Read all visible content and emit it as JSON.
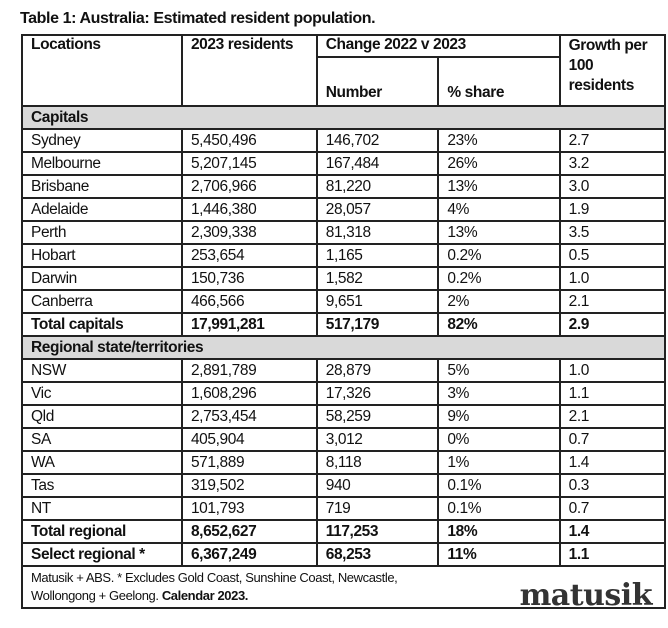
{
  "title": "Table 1: Australia: Estimated resident population.",
  "headers": {
    "locations": "Locations",
    "residents": "2023 residents",
    "change": "Change 2022 v 2023",
    "number": "Number",
    "share": "% share",
    "growth": "Growth per 100 residents"
  },
  "sections": [
    {
      "label": "Capitals",
      "rows": [
        [
          "Sydney",
          "5,450,496",
          "146,702",
          "23%",
          "2.7"
        ],
        [
          "Melbourne",
          "5,207,145",
          "167,484",
          "26%",
          "3.2"
        ],
        [
          "Brisbane",
          "2,706,966",
          "81,220",
          "13%",
          "3.0"
        ],
        [
          "Adelaide",
          "1,446,380",
          "28,057",
          "4%",
          "1.9"
        ],
        [
          "Perth",
          "2,309,338",
          "81,318",
          "13%",
          "3.5"
        ],
        [
          "Hobart",
          "253,654",
          "1,165",
          "0.2%",
          "0.5"
        ],
        [
          "Darwin",
          "150,736",
          "1,582",
          "0.2%",
          "1.0"
        ],
        [
          "Canberra",
          "466,566",
          "9,651",
          "2%",
          "2.1"
        ]
      ],
      "totals": [
        [
          "Total capitals",
          "17,991,281",
          "517,179",
          "82%",
          "2.9"
        ]
      ]
    },
    {
      "label": "Regional state/territories",
      "rows": [
        [
          "NSW",
          "2,891,789",
          "28,879",
          "5%",
          "1.0"
        ],
        [
          "Vic",
          "1,608,296",
          "17,326",
          "3%",
          "1.1"
        ],
        [
          "Qld",
          "2,753,454",
          "58,259",
          "9%",
          "2.1"
        ],
        [
          "SA",
          "405,904",
          "3,012",
          "0%",
          "0.7"
        ],
        [
          "WA",
          "571,889",
          "8,118",
          "1%",
          "1.4"
        ],
        [
          "Tas",
          "319,502",
          "940",
          "0.1%",
          "0.3"
        ],
        [
          "NT",
          "101,793",
          "719",
          "0.1%",
          "0.7"
        ]
      ],
      "totals": [
        [
          "Total regional",
          "8,652,627",
          "117,253",
          "18%",
          "1.4"
        ],
        [
          "Select regional *",
          "6,367,249",
          "68,253",
          "11%",
          "1.1"
        ]
      ]
    }
  ],
  "footnote": {
    "text": "Matusik + ABS.  * Excludes Gold Coast, Sunshine Coast, Newcastle, Wollongong + Geelong. ",
    "bold": "Calendar 2023."
  },
  "logo": "matusik"
}
